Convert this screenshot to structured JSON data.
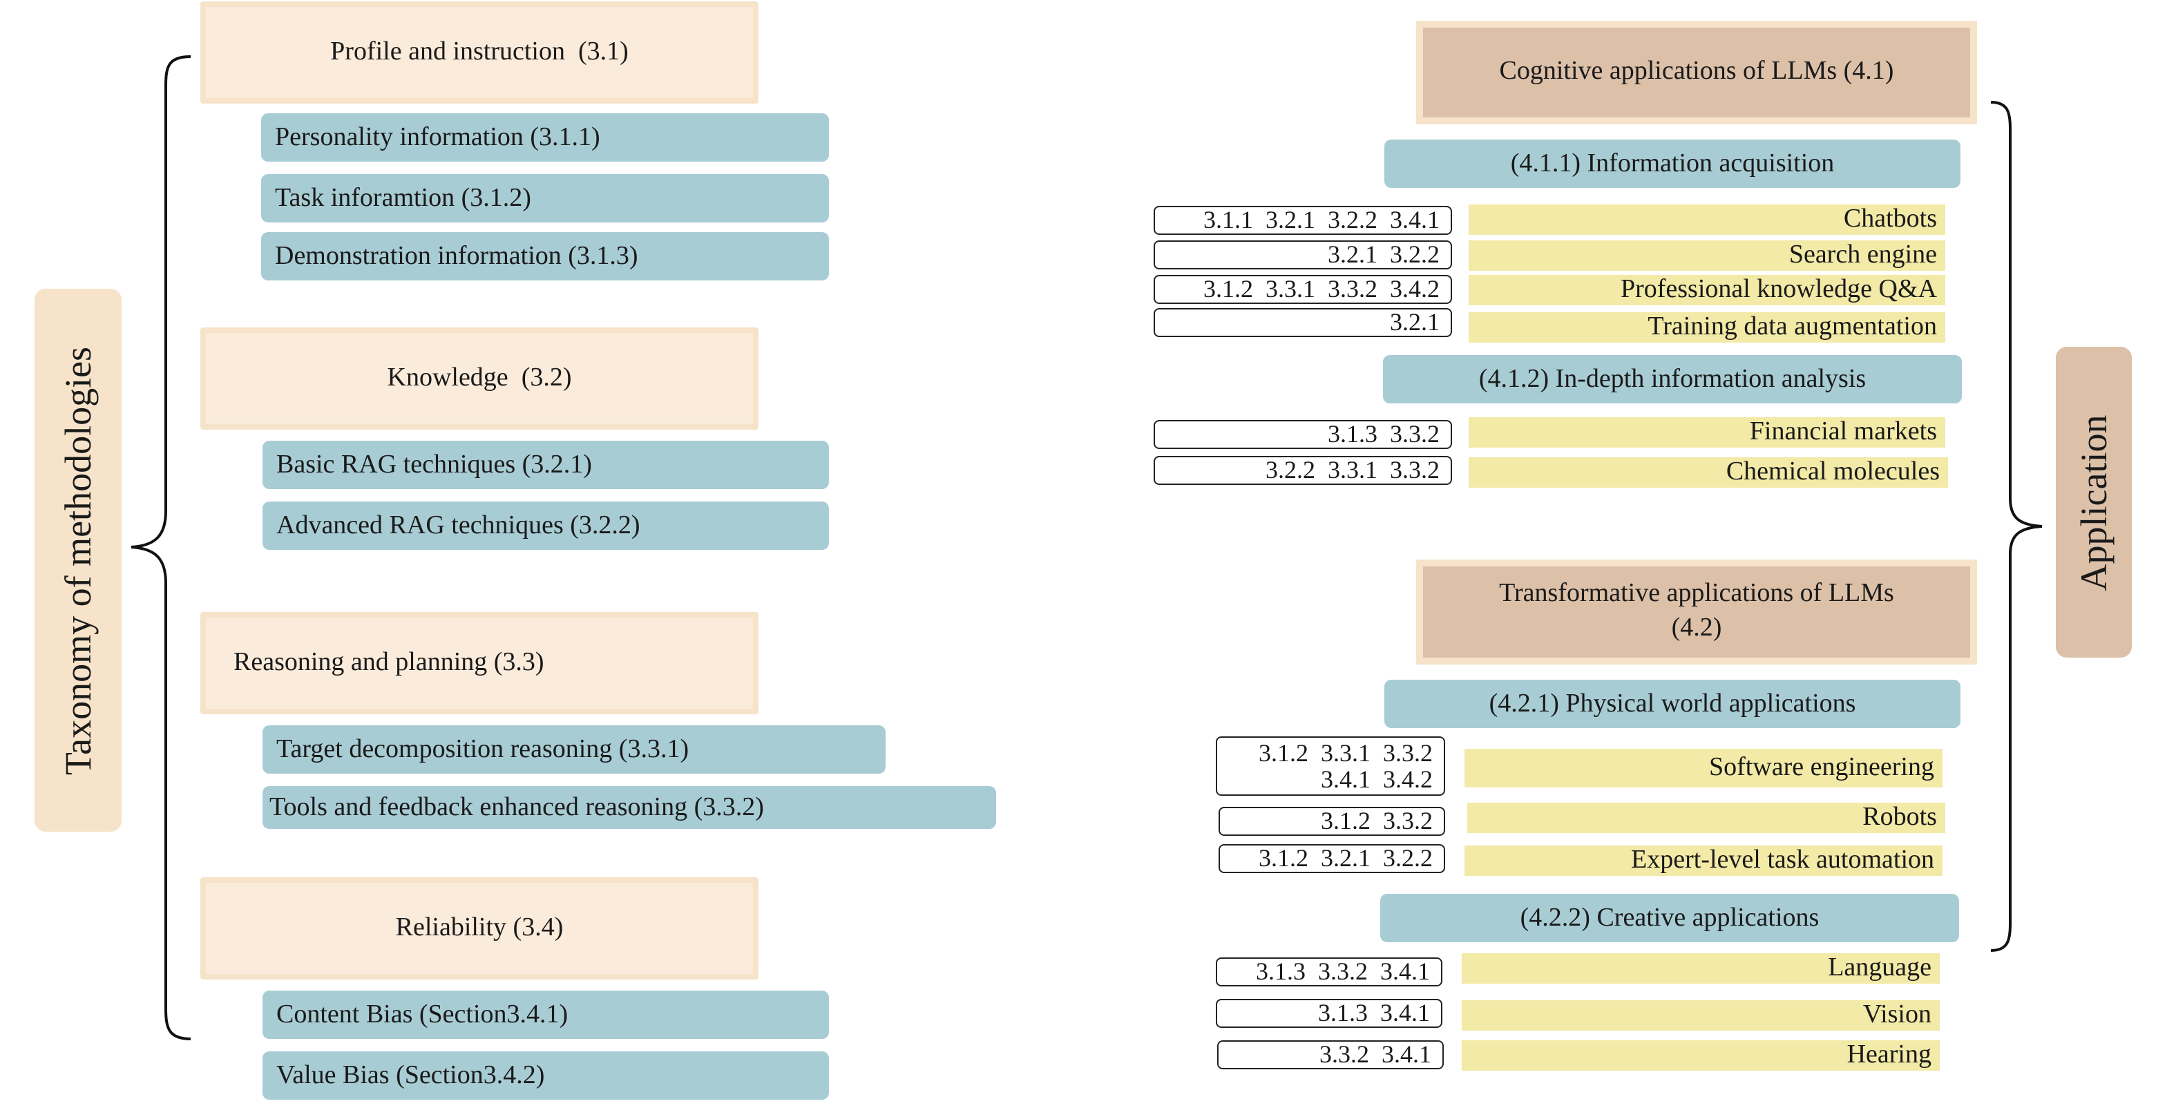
{
  "left_label": "Taxonomy of methodologies",
  "right_label": "Application",
  "methodologies": {
    "profile": {
      "title": "Profile and instruction",
      "ref": "(3.1)",
      "items": [
        "Personality information (3.1.1)",
        "Task inforamtion (3.1.2)",
        "Demonstration information (3.1.3)"
      ]
    },
    "knowledge": {
      "title": "Knowledge",
      "ref": "(3.2)",
      "items": [
        "Basic RAG techniques (3.2.1)",
        "Advanced RAG techniques (3.2.2)"
      ]
    },
    "reasoning": {
      "title": "Reasoning and planning (3.3)",
      "items": [
        "Target decomposition reasoning (3.3.1)",
        "Tools and feedback enhanced reasoning (3.3.2)"
      ]
    },
    "reliability": {
      "title": "Reliability (3.4)",
      "items": [
        "Content Bias  (Section3.4.1)",
        "Value Bias  (Section3.4.2)"
      ]
    }
  },
  "applications": {
    "cognitive": {
      "title": "Cognitive applications of LLMs (4.1)",
      "groups": [
        {
          "title": "(4.1.1) Information acquisition",
          "rows": [
            {
              "refs": "3.1.1  3.2.1  3.2.2  3.4.1",
              "label": "Chatbots"
            },
            {
              "refs": "3.2.1  3.2.2",
              "label": "Search engine"
            },
            {
              "refs": "3.1.2  3.3.1  3.3.2  3.4.2",
              "label": "Professional knowledge Q&A"
            },
            {
              "refs": "3.2.1",
              "label": "Training data augmentation"
            }
          ]
        },
        {
          "title": "(4.1.2) In-depth information analysis",
          "rows": [
            {
              "refs": "3.1.3  3.3.2",
              "label": "Financial markets"
            },
            {
              "refs": "3.2.2  3.3.1  3.3.2",
              "label": "Chemical molecules"
            }
          ]
        }
      ]
    },
    "transformative": {
      "title_line1": "Transformative applications of LLMs",
      "title_line2": "(4.2)",
      "groups": [
        {
          "title": "(4.2.1) Physical world applications",
          "rows": [
            {
              "refs_line1": "3.1.2  3.3.1  3.3.2",
              "refs_line2": "3.4.1  3.4.2",
              "label": "Software engineering"
            },
            {
              "refs": "3.1.2  3.3.2",
              "label": "Robots"
            },
            {
              "refs": "3.1.2  3.2.1  3.2.2",
              "label": "Expert-level task automation"
            }
          ]
        },
        {
          "title": "(4.2.2) Creative applications",
          "rows": [
            {
              "refs": "3.1.3  3.3.2  3.4.1",
              "label": "Language"
            },
            {
              "refs": "3.1.3  3.4.1",
              "label": "Vision"
            },
            {
              "refs": "3.3.2  3.4.1",
              "label": "Hearing"
            }
          ]
        }
      ]
    }
  }
}
